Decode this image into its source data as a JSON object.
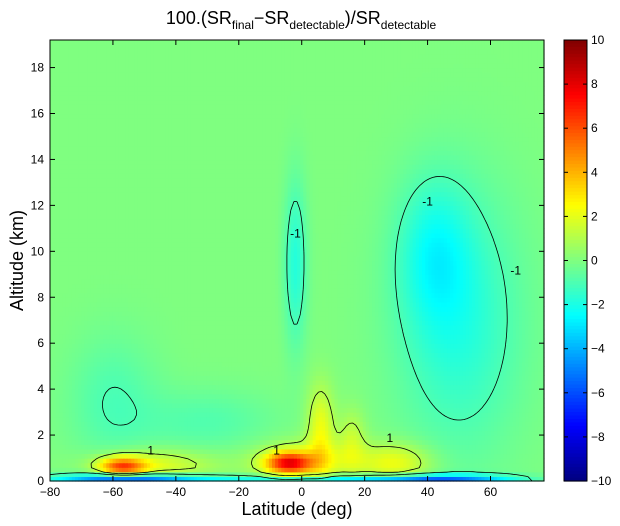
{
  "chart_data": {
    "type": "heatmap",
    "title": {
      "parts": [
        {
          "text": "100.(SR",
          "sub": false
        },
        {
          "text": "final",
          "sub": true
        },
        {
          "text": "−SR",
          "sub": false
        },
        {
          "text": "detectable",
          "sub": true
        },
        {
          "text": ")/SR",
          "sub": false
        },
        {
          "text": "detectable",
          "sub": true
        }
      ]
    },
    "xlabel": "Latitude (deg)",
    "ylabel": "Altitude (km)",
    "xlim": [
      -80,
      77
    ],
    "ylim": [
      0,
      19.2
    ],
    "xticks": [
      -80,
      -60,
      -40,
      -20,
      0,
      20,
      40,
      60
    ],
    "yticks": [
      0,
      2,
      4,
      6,
      8,
      10,
      12,
      14,
      16,
      18
    ],
    "colorbar": {
      "colormap": "jet",
      "clim": [
        -10,
        10
      ],
      "ticks": [
        -10,
        -8,
        -6,
        -4,
        -2,
        0,
        2,
        4,
        6,
        8,
        10
      ]
    },
    "background_value": 0,
    "contour_levels": [
      -1,
      1
    ],
    "contour_labels": [
      "-1",
      "1"
    ],
    "features": [
      {
        "name": "southern-low-level-positive",
        "lat": -57,
        "alt": 0.65,
        "peak": 5.5,
        "lat_halfwidth": 5,
        "alt_halfwidth": 0.28
      },
      {
        "name": "southern-low-level-band",
        "lat": -47,
        "alt": 0.7,
        "peak": 2.0,
        "lat_halfwidth": 13,
        "alt_halfwidth": 0.5
      },
      {
        "name": "tropical-surface-positive",
        "lat": -4,
        "alt": 0.8,
        "peak": 6.5,
        "lat_halfwidth": 5,
        "alt_halfwidth": 0.33
      },
      {
        "name": "tropical-low-level-band",
        "lat": 2,
        "alt": 0.9,
        "peak": 2.0,
        "lat_halfwidth": 12,
        "alt_halfwidth": 0.6
      },
      {
        "name": "tropical-convective-column",
        "lat": 6,
        "alt": 2.3,
        "peak": 2.2,
        "lat_halfwidth": 3,
        "alt_halfwidth": 1.3
      },
      {
        "name": "mid-latitude-low-positive",
        "lat": 30,
        "alt": 0.8,
        "peak": 2.2,
        "lat_halfwidth": 8,
        "alt_halfwidth": 0.6
      },
      {
        "name": "subtropical-column",
        "lat": 16,
        "alt": 1.9,
        "peak": 1.3,
        "lat_halfwidth": 3,
        "alt_halfwidth": 0.9
      },
      {
        "name": "surface-negative-south",
        "lat": -55,
        "alt": 0.08,
        "peak": -6.0,
        "lat_halfwidth": 16,
        "alt_halfwidth": 0.18
      },
      {
        "name": "surface-negative-tropics",
        "lat": 10,
        "alt": 0.06,
        "peak": -3.0,
        "lat_halfwidth": 30,
        "alt_halfwidth": 0.15
      },
      {
        "name": "surface-negative-north",
        "lat": 45,
        "alt": 0.08,
        "peak": -4.0,
        "lat_halfwidth": 15,
        "alt_halfwidth": 0.16
      },
      {
        "name": "upper-tropical-negative",
        "lat": -2,
        "alt": 9.5,
        "peak": -1.8,
        "lat_halfwidth": 2.5,
        "alt_halfwidth": 2.5
      },
      {
        "name": "northern-mid-negative",
        "lat": 50,
        "alt": 7.0,
        "peak": -1.8,
        "lat_halfwidth": 14,
        "alt_halfwidth": 4.0
      },
      {
        "name": "northern-upper-negative",
        "lat": 42,
        "alt": 10.0,
        "peak": -1.6,
        "lat_halfwidth": 8,
        "alt_halfwidth": 2.2
      },
      {
        "name": "southern-mid-negative",
        "lat": -60,
        "alt": 3.5,
        "peak": -1.0,
        "lat_halfwidth": 10,
        "alt_halfwidth": 2.0
      },
      {
        "name": "low-level-negative-ring",
        "lat": -30,
        "alt": 2.6,
        "peak": -0.9,
        "lat_halfwidth": 15,
        "alt_halfwidth": 1.0
      }
    ]
  }
}
